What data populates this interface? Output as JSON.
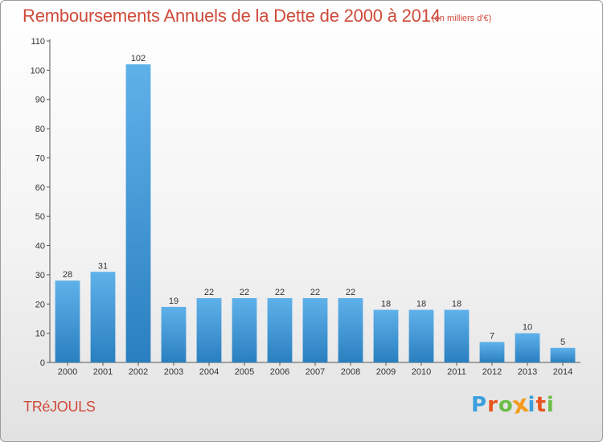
{
  "header": {
    "title": "Remboursements Annuels de la Dette de 2000 à 2014",
    "subtitle": "(en milliers d'€)"
  },
  "footer": {
    "place": "TRéJOULS",
    "logo_letters": [
      "P",
      "r",
      "o",
      "x",
      "i",
      "t",
      "i"
    ],
    "logo_colors": [
      "#3b9fdc",
      "#e8541e",
      "#6cbd45",
      "#f39c1f",
      "#3b9fdc",
      "#e8541e",
      "#6cbd45"
    ]
  },
  "chart_data": {
    "type": "bar",
    "categories": [
      "2000",
      "2001",
      "2002",
      "2003",
      "2004",
      "2005",
      "2006",
      "2007",
      "2008",
      "2009",
      "2010",
      "2011",
      "2012",
      "2013",
      "2014"
    ],
    "values": [
      28,
      31,
      102,
      19,
      22,
      22,
      22,
      22,
      22,
      18,
      18,
      18,
      7,
      10,
      5
    ],
    "ylim": [
      0,
      110
    ],
    "yticks": [
      0,
      10,
      20,
      30,
      40,
      50,
      60,
      70,
      80,
      90,
      100,
      110
    ],
    "grid": false,
    "bar_color_top": "#5fb1e9",
    "bar_color_bottom": "#2a7fc0"
  }
}
